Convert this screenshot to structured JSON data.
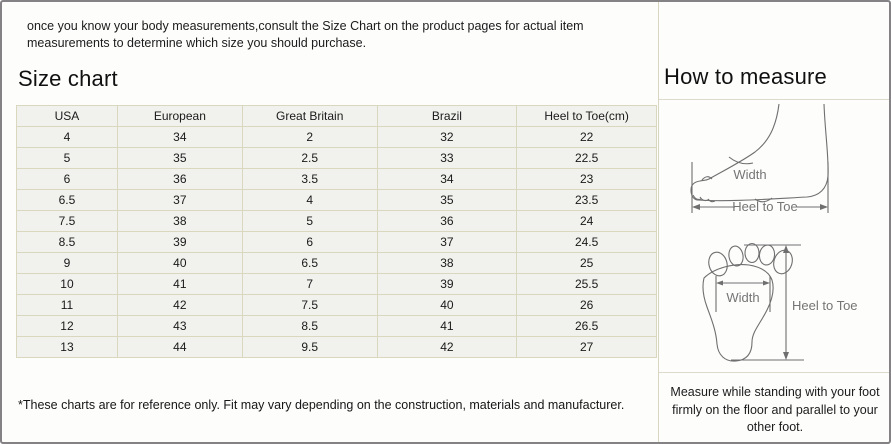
{
  "intro": {
    "text": "once you know your body measurements,consult the Size Chart on the product pages for actual item measurements to determine which size you should purchase."
  },
  "size_chart": {
    "title": "Size chart",
    "columns": [
      "USA",
      "European",
      "Great Britain",
      "Brazil",
      "Heel to Toe(cm)"
    ],
    "rows": [
      [
        "4",
        "34",
        "2",
        "32",
        "22"
      ],
      [
        "5",
        "35",
        "2.5",
        "33",
        "22.5"
      ],
      [
        "6",
        "36",
        "3.5",
        "34",
        "23"
      ],
      [
        "6.5",
        "37",
        "4",
        "35",
        "23.5"
      ],
      [
        "7.5",
        "38",
        "5",
        "36",
        "24"
      ],
      [
        "8.5",
        "39",
        "6",
        "37",
        "24.5"
      ],
      [
        "9",
        "40",
        "6.5",
        "38",
        "25"
      ],
      [
        "10",
        "41",
        "7",
        "39",
        "25.5"
      ],
      [
        "11",
        "42",
        "7.5",
        "40",
        "26"
      ],
      [
        "12",
        "43",
        "8.5",
        "41",
        "26.5"
      ],
      [
        "13",
        "44",
        "9.5",
        "42",
        "27"
      ]
    ],
    "footnote": "*These charts are for reference only. Fit may vary depending on the construction, materials and manufacturer."
  },
  "how_to_measure": {
    "title": "How to measure",
    "side_view_labels": {
      "width": "Width",
      "heel_to_toe": "Heel to Toe"
    },
    "top_view_labels": {
      "width": "Width",
      "heel_to_toe": "Heel to Toe"
    },
    "note": "Measure while standing with your foot firmly on the floor and parallel to your other foot."
  },
  "colors": {
    "outer_border": "#848284",
    "background": "#fdfdfc",
    "table_grid": "#d9d7bd",
    "table_cell_bg": "#f1f1ed",
    "divider": "#d8d5c1",
    "diagram_stroke": "#6f6f6f",
    "diagram_label": "#757575"
  }
}
